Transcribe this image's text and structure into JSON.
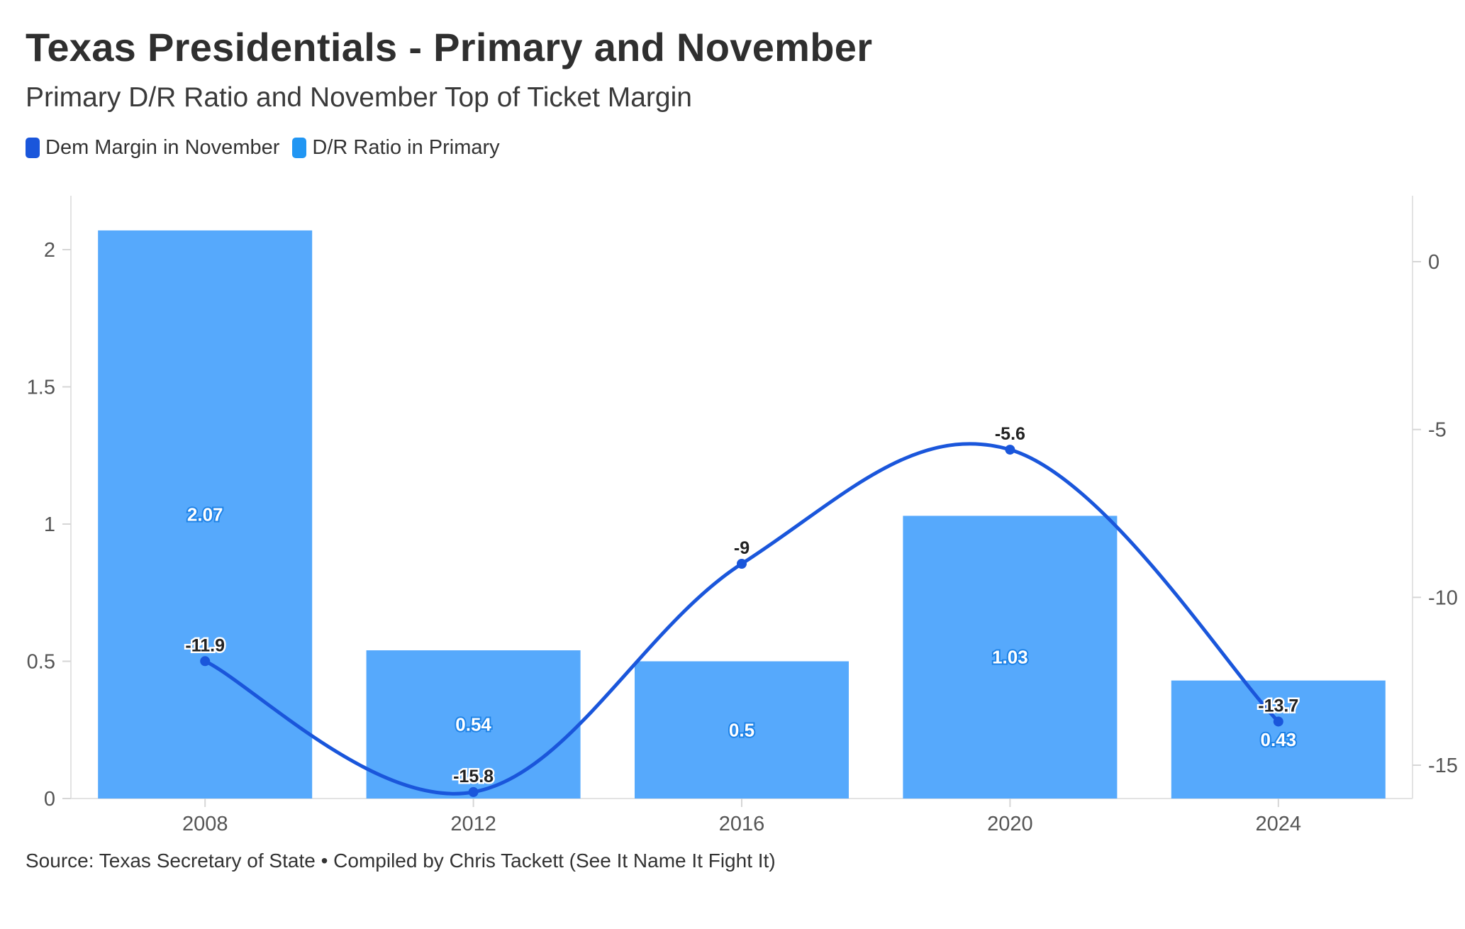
{
  "header": {
    "title": "Texas Presidentials - Primary and November",
    "subtitle": "Primary D/R Ratio and November Top of Ticket Margin"
  },
  "legend": {
    "items": [
      {
        "label": "Dem Margin in November",
        "color": "#1a56db"
      },
      {
        "label": "D/R Ratio in Primary",
        "color": "#2196f3"
      }
    ]
  },
  "footer": {
    "source": "Source: Texas Secretary of State • Compiled by Chris Tackett (See It Name It Fight It)"
  },
  "chart_data": {
    "type": "bar",
    "title": "Texas Presidentials - Primary and November",
    "subtitle": "Primary D/R Ratio and November Top of Ticket Margin",
    "categories": [
      "2008",
      "2012",
      "2016",
      "2020",
      "2024"
    ],
    "series": [
      {
        "name": "D/R Ratio in Primary",
        "type": "bar",
        "axis": "left",
        "color": "#56a9fc",
        "values": [
          2.07,
          0.54,
          0.5,
          1.03,
          0.43
        ],
        "labels": [
          "2.07",
          "0.54",
          "0.5",
          "1.03",
          "0.43"
        ]
      },
      {
        "name": "Dem Margin in November",
        "type": "line",
        "axis": "right",
        "color": "#1a56db",
        "values": [
          -11.9,
          -15.8,
          -9,
          -5.6,
          -13.7
        ],
        "labels": [
          "-11.9",
          "-15.8",
          "-9",
          "-5.6",
          "-13.7"
        ]
      }
    ],
    "left_axis": {
      "ylim": [
        0,
        2.2
      ],
      "ticks": [
        0,
        0.5,
        1,
        1.5,
        2
      ],
      "tick_labels": [
        "0",
        "0.5",
        "1",
        "1.5",
        "2"
      ]
    },
    "right_axis": {
      "ylim": [
        -16,
        2
      ],
      "ticks": [
        0,
        -5,
        -10,
        -15
      ],
      "tick_labels": [
        "0",
        "-5",
        "-10",
        "-15"
      ]
    },
    "grid": false,
    "legend_position": "top-left"
  }
}
